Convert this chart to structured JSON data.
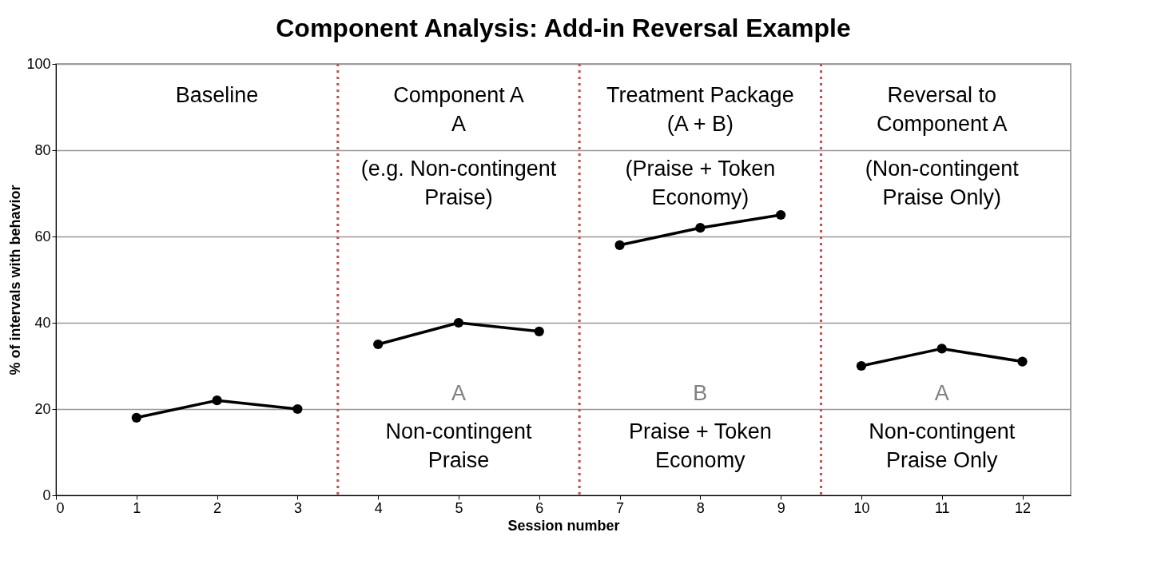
{
  "chart_data": {
    "type": "line",
    "title": "Component Analysis: Add-in Reversal Example",
    "xlabel": "Session number",
    "ylabel": "% of intervals with behavior",
    "series": [
      {
        "color": "#000000",
        "x": [
          1,
          2,
          3
        ],
        "values": [
          18,
          22,
          20
        ]
      },
      {
        "color": "#000000",
        "x": [
          4,
          5,
          6
        ],
        "values": [
          35,
          40,
          38
        ]
      },
      {
        "color": "#000000",
        "x": [
          7,
          8,
          9
        ],
        "values": [
          58,
          62,
          65
        ]
      },
      {
        "color": "#000000",
        "x": [
          10,
          11,
          12
        ],
        "values": [
          30,
          34,
          31
        ]
      }
    ],
    "xlim": [
      0,
      12.6
    ],
    "xticks": [
      0,
      1,
      2,
      3,
      4,
      5,
      6,
      7,
      8,
      9,
      10,
      11,
      12
    ],
    "ylim": [
      0,
      100
    ],
    "yticks": [
      0,
      20,
      40,
      60,
      80,
      100
    ],
    "ref_lines": [
      {
        "axis": "x",
        "value": 3.5,
        "color": "#c0504d",
        "line_style": "dotted"
      },
      {
        "axis": "x",
        "value": 6.5,
        "color": "#c0504d",
        "line_style": "dotted"
      },
      {
        "axis": "x",
        "value": 9.5,
        "color": "#c0504d",
        "line_style": "dotted"
      }
    ],
    "annotations": [
      "Baseline",
      "Component A\nA",
      "Treatment Package\n(A + B)",
      "Reversal to\nComponent A",
      "(e.g. Non-contingent\nPraise)",
      "(Praise + Token\nEconomy)",
      "(Non-contingent\nPraise Only)",
      "A",
      "B",
      "A",
      "Non-contingent\nPraise",
      "Praise + Token\nEconomy",
      "Non-contingent\nPraise Only"
    ],
    "grid": "y",
    "marker": "circle",
    "line_style": "solid"
  }
}
